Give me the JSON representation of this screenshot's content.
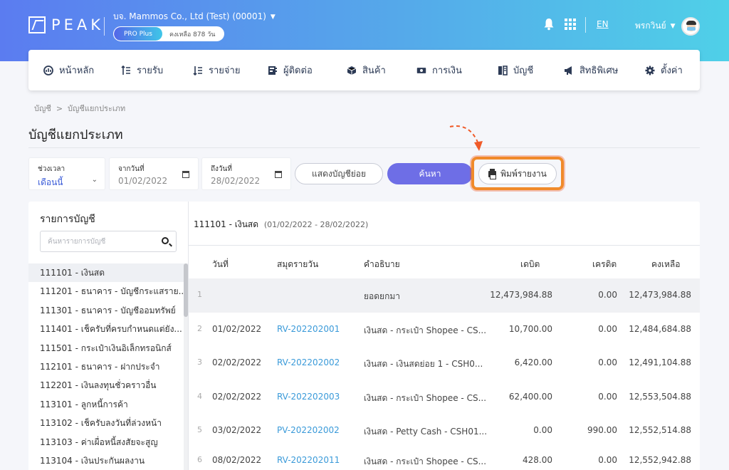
{
  "header": {
    "logo": "PEAK",
    "company": "บจ. Mammos Co., Ltd (Test) (00001)",
    "plan": "PRO Plus",
    "days_left": "คงเหลือ 878 วัน",
    "lang": "EN",
    "user": "พรกวินย์"
  },
  "nav": [
    {
      "label": "หน้าหลัก",
      "icon": "dashboard-icon"
    },
    {
      "label": "รายรับ",
      "icon": "income-icon"
    },
    {
      "label": "รายจ่าย",
      "icon": "expense-icon"
    },
    {
      "label": "ผู้ติดต่อ",
      "icon": "contacts-icon"
    },
    {
      "label": "สินค้า",
      "icon": "product-icon"
    },
    {
      "label": "การเงิน",
      "icon": "money-icon"
    },
    {
      "label": "บัญชี",
      "icon": "accounting-icon"
    },
    {
      "label": "สิทธิพิเศษ",
      "icon": "megaphone-icon"
    },
    {
      "label": "ตั้งค่า",
      "icon": "gear-icon"
    }
  ],
  "breadcrumb": {
    "root": "บัญชี",
    "sep": ">",
    "current": "บัญชีแยกประเภท"
  },
  "page_title": "บัญชีแยกประเภท",
  "filters": {
    "period_label": "ช่วงเวลา",
    "period_value": "เดือนนี้",
    "from_label": "จากวันที่",
    "from_value": "01/02/2022",
    "to_label": "ถึงวันที่",
    "to_value": "28/02/2022",
    "show_sub_label": "แสดงบัญชีย่อย",
    "search_label": "ค้นหา",
    "print_label": "พิมพ์รายงาน"
  },
  "accounts": {
    "title": "รายการบัญชี",
    "search_placeholder": "ค้นหารายการบัญชี",
    "items": [
      "111101 - เงินสด",
      "111201 - ธนาคาร - บัญชีกระแสราย...",
      "111301 - ธนาคาร - บัญชีออมทรัพย์",
      "111401 - เช็ครับที่ครบกำหนดแต่ยัง...",
      "111501 - กระเป๋าเงินอิเล็กทรอนิกส์",
      "112101 - ธนาคาร - ฝากประจำ",
      "112201 - เงินลงทุนชั่วคราวอื่น",
      "113101 - ลูกหนี้การค้า",
      "113102 - เช็ครับลงวันที่ล่วงหน้า",
      "113103 - ค่าเผื่อหนี้สงสัยจะสูญ",
      "113104 - เงินประกันผลงาน"
    ]
  },
  "ledger": {
    "account": "111101 - เงินสด",
    "range": "(01/02/2022 - 28/02/2022)",
    "columns": [
      "วันที่",
      "สมุดรายวัน",
      "คำอธิบาย",
      "เดบิต",
      "เครดิต",
      "คงเหลือ"
    ],
    "rows": [
      {
        "idx": "1",
        "date": "",
        "journal": "",
        "desc": "ยอดยกมา",
        "debit": "12,473,984.88",
        "credit": "0.00",
        "balance": "12,473,984.88"
      },
      {
        "idx": "2",
        "date": "01/02/2022",
        "journal": "RV-202202001",
        "desc": "เงินสด - กระเป๋า Shopee - CS...",
        "debit": "10,700.00",
        "credit": "0.00",
        "balance": "12,484,684.88"
      },
      {
        "idx": "3",
        "date": "02/02/2022",
        "journal": "RV-202202002",
        "desc": "เงินสด - เงินสดย่อย 1 - CSH0...",
        "debit": "6,420.00",
        "credit": "0.00",
        "balance": "12,491,104.88"
      },
      {
        "idx": "4",
        "date": "02/02/2022",
        "journal": "RV-202202003",
        "desc": "เงินสด - กระเป๋า Shopee - CS...",
        "debit": "62,400.00",
        "credit": "0.00",
        "balance": "12,553,504.88"
      },
      {
        "idx": "5",
        "date": "03/02/2022",
        "journal": "PV-202202002",
        "desc": "เงินสด - Petty Cash - CSH01...",
        "debit": "0.00",
        "credit": "990.00",
        "balance": "12,552,514.88"
      },
      {
        "idx": "6",
        "date": "08/02/2022",
        "journal": "RV-202202011",
        "desc": "เงินสด - กระเป๋า Shopee - CS...",
        "debit": "428.00",
        "credit": "0.00",
        "balance": "12,552,942.88"
      }
    ]
  },
  "colors": {
    "accent": "#6e6ee6",
    "highlight": "#f08a2a",
    "link": "#3a9ad9"
  }
}
